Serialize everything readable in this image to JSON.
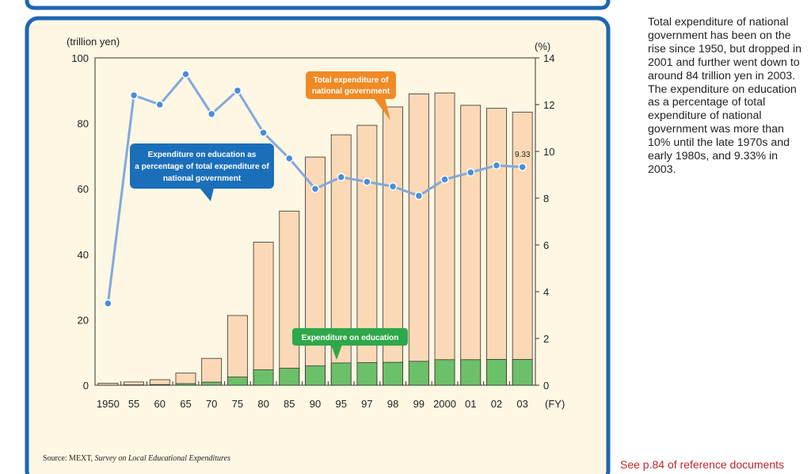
{
  "colors": {
    "frame": "#1d67b2",
    "panel": "#fdf7e3",
    "bar_total": "#fcd9b6",
    "bar_edu": "#6cc06a",
    "line": "#82a8dd",
    "marker": "#4a8dd8",
    "callout_blue": "#1b6fba",
    "callout_orange": "#f08a24",
    "callout_green": "#2ea84a",
    "link": "#c0262a"
  },
  "chart_data": {
    "type": "bar+line",
    "categories": [
      "1950",
      "55",
      "60",
      "65",
      "70",
      "75",
      "80",
      "85",
      "90",
      "95",
      "97",
      "98",
      "99",
      "2000",
      "01",
      "02",
      "03"
    ],
    "x_unit": "(FY)",
    "left_axis": {
      "label": "(trillion yen)",
      "min": 0,
      "max": 100,
      "ticks": [
        0,
        20,
        40,
        60,
        80,
        100
      ]
    },
    "right_axis": {
      "label": "(%)",
      "min": 0,
      "max": 14,
      "ticks": [
        0,
        2,
        4,
        6,
        8,
        10,
        12,
        14
      ]
    },
    "series": [
      {
        "name": "Total expenditure of national government",
        "axis": "left",
        "type": "bar",
        "values": [
          0.6,
          1.0,
          1.7,
          3.7,
          8.2,
          21.3,
          43.7,
          53.2,
          69.7,
          76.5,
          79.4,
          85.0,
          89.0,
          89.3,
          85.5,
          84.6,
          83.4
        ]
      },
      {
        "name": "Expenditure on education",
        "axis": "left",
        "type": "bar",
        "values": [
          0.03,
          0.12,
          0.2,
          0.49,
          0.95,
          2.5,
          4.7,
          5.2,
          5.9,
          6.8,
          6.9,
          7.0,
          7.3,
          7.8,
          7.8,
          7.9,
          7.9
        ]
      },
      {
        "name": "Expenditure on education as a percentage of total expenditure of national government",
        "axis": "right",
        "type": "line",
        "values": [
          3.5,
          12.4,
          12.0,
          13.3,
          11.6,
          12.6,
          10.8,
          9.7,
          8.4,
          8.9,
          8.7,
          8.5,
          8.1,
          8.8,
          9.1,
          9.4,
          9.33
        ]
      }
    ],
    "annotations": {
      "last_point_label": "9.33",
      "callout_percentage": [
        "Expenditure on education as",
        "a percentage of total expenditure of",
        "national government"
      ],
      "callout_total": [
        "Total expenditure of",
        "national government"
      ],
      "callout_education": [
        "Expenditure on education"
      ]
    },
    "source_prefix": "Source: MEXT, ",
    "source_title": "Survey on Local Educational Expenditures"
  },
  "side_text": "Total expenditure of national government has been on the rise since 1950, but dropped in 2001 and further went down to around 84 trillion yen in 2003. The expenditure on education as a percentage of total expenditure of national government was more than 10% until the late 1970s and early 1980s, and 9.33% in 2003.",
  "reference_link": "See p.84 of reference documents"
}
